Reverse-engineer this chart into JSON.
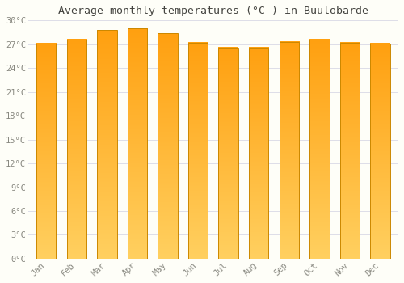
{
  "title": "Average monthly temperatures (°C ) in Buulobarde",
  "months": [
    "Jan",
    "Feb",
    "Mar",
    "Apr",
    "May",
    "Jun",
    "Jul",
    "Aug",
    "Sep",
    "Oct",
    "Nov",
    "Dec"
  ],
  "values": [
    27.1,
    27.6,
    28.8,
    29.0,
    28.4,
    27.2,
    26.6,
    26.6,
    27.3,
    27.6,
    27.2,
    27.1
  ],
  "ylim": [
    0,
    30
  ],
  "yticks": [
    0,
    3,
    6,
    9,
    12,
    15,
    18,
    21,
    24,
    27,
    30
  ],
  "ytick_labels": [
    "0°C",
    "3°C",
    "6°C",
    "9°C",
    "12°C",
    "15°C",
    "18°C",
    "21°C",
    "24°C",
    "27°C",
    "30°C"
  ],
  "background_color": "#FEFEF8",
  "grid_color": "#DDDDE8",
  "title_fontsize": 9.5,
  "tick_fontsize": 7.5,
  "bar_color_light": "#FFD060",
  "bar_color_dark": "#FFA010",
  "bar_edge_color": "#CC8800",
  "bar_width": 0.65
}
